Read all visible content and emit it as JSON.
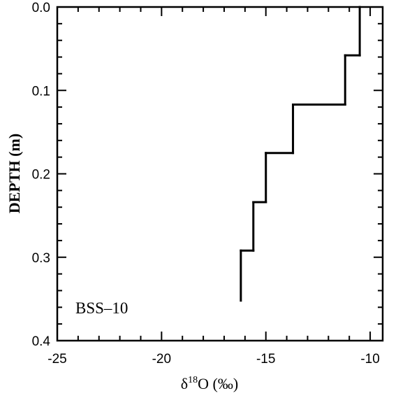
{
  "chart_data": {
    "type": "step",
    "xlabel": {
      "pre": "δ",
      "sup": "18",
      "post": "O (‰)"
    },
    "ylabel": "DEPTH (m)",
    "annotation": "BSS–10",
    "color": "#000000",
    "depth_bins": [
      0,
      0.058,
      0.117,
      0.175,
      0.234,
      0.292,
      0.352
    ],
    "values": [
      -10.5,
      -11.2,
      -13.7,
      -15.0,
      -15.6,
      -16.2
    ],
    "xlim": [
      -25,
      -9.4
    ],
    "ylim": [
      0,
      0.4
    ],
    "y_inverted": true,
    "xticks": [
      -25,
      -20,
      -15,
      -10
    ],
    "yticks": [
      {
        "value": 0,
        "label": "0.0"
      },
      0.1,
      0.2,
      0.3,
      0.4
    ],
    "xminorticks": [
      -24,
      -23,
      -22,
      -21,
      -19,
      -18,
      -17,
      -16,
      -14,
      -13,
      -12,
      -11
    ],
    "yminorticks": [
      0.02,
      0.04,
      0.06,
      0.08,
      0.12,
      0.14,
      0.16,
      0.18,
      0.22,
      0.24,
      0.26,
      0.28,
      0.32,
      0.34,
      0.36,
      0.38
    ]
  }
}
